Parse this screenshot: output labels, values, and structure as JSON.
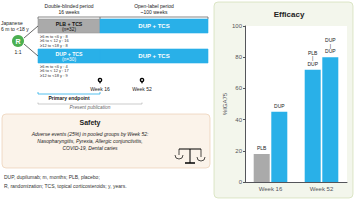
{
  "chart_data": {
    "type": "bar",
    "title": "Efficacy",
    "categories": [
      "Week 16",
      "Week 52"
    ],
    "series": [
      {
        "values": [
          18,
          72
        ],
        "colors": [
          "#aaaaaa",
          "#29b0e8"
        ],
        "labels": [
          "PLB",
          "PLB\n|\nDUP"
        ]
      },
      {
        "values": [
          45,
          80
        ],
        "colors": [
          "#29b0e8",
          "#29b0e8"
        ],
        "labels": [
          "DUP",
          "DUP\n|\nDUP"
        ]
      }
    ],
    "ylabel": "%IGA75",
    "ylim": [
      0,
      100
    ],
    "yticks": [
      0,
      20,
      40,
      60,
      80,
      100
    ],
    "grid": false,
    "annotations": [
      "Double-blinded period\n16 weeks",
      "Open-label period\n~100 weeks",
      "PLB + TCS",
      "(n=32)",
      "DUP + TCS",
      "≥6 m to <6 y : 8\n≥6 to < 12 y : 16\n≥12 to <18 y : 8",
      "DUP + TCS",
      "(n=30)",
      "DUP + TCS",
      "≥6 m to <6 y : 4\n≥6 to < 12 y : 17\n≥12 to <18 y : 9",
      "Japanese\n6 m to <18 y",
      "R",
      "1:1",
      "Week 16",
      "Week 52",
      "Primary endpoint",
      "Present publication",
      "DUP, dupilumab; m, months; PLB, placebo;",
      "R, randomization; TCS, topical corticosteroids; y, years.",
      "Safety",
      "Adverse events (25%) in pooled groups by Week 52:\nNasopharyngitis, Pyrexia, Allergic conjunctivitis,\nCOVID-19, Dental caries"
    ]
  }
}
